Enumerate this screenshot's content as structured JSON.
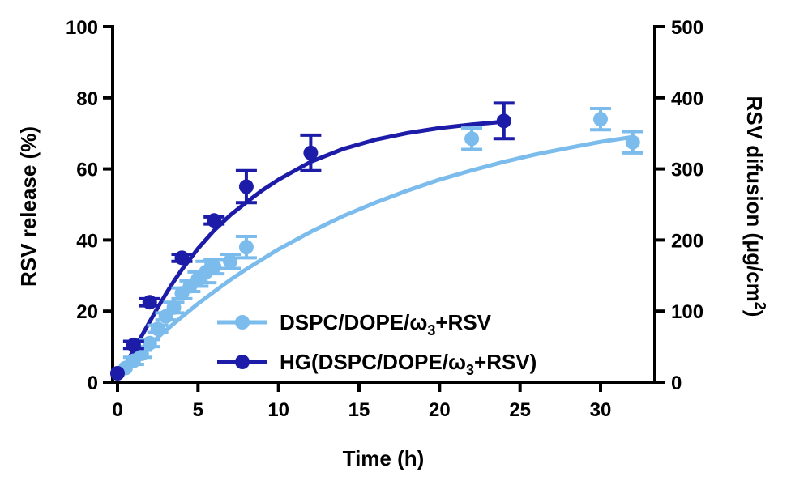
{
  "chart_data": {
    "type": "line",
    "title": "",
    "xlabel": "Time (h)",
    "ylabel": "RSV release (%)",
    "y2label_main": "RSV difusion (",
    "y2label_unit": "μg/cm",
    "y2label_sup": "2",
    "y2label_close": ")",
    "xlim": [
      0,
      33
    ],
    "ylim": [
      0,
      100
    ],
    "y2lim": [
      0,
      500
    ],
    "x_ticks": [
      0,
      5,
      10,
      15,
      20,
      25,
      30
    ],
    "x_tick_labels": [
      "0",
      "5",
      "10",
      "15",
      "20",
      "25",
      "30"
    ],
    "y_ticks": [
      0,
      20,
      40,
      60,
      80,
      100
    ],
    "y_tick_labels": [
      "0",
      "20",
      "40",
      "60",
      "80",
      "100"
    ],
    "y2_ticks": [
      0,
      100,
      200,
      300,
      400,
      500
    ],
    "y2_tick_labels": [
      "0",
      "100",
      "200",
      "300",
      "400",
      "500"
    ],
    "legend_position": "bottom-right",
    "series": [
      {
        "name": "DSPC/DOPE/ω3+RSV",
        "legend_main": "DSPC/DOPE/ω",
        "legend_sub": "3",
        "legend_tail": "+RSV",
        "color": "#7bbcec",
        "x": [
          0,
          0.5,
          1,
          1.5,
          2,
          2.5,
          3,
          3.5,
          4,
          4.5,
          5,
          5.5,
          6,
          7,
          8,
          22,
          30,
          32
        ],
        "y": [
          2.5,
          4,
          6,
          8,
          11,
          15,
          18.5,
          21,
          25,
          27,
          29,
          31,
          32.5,
          34,
          38,
          68.5,
          74,
          67.5
        ],
        "err": [
          0.5,
          0.5,
          1,
          1,
          1,
          1,
          1,
          1.5,
          1.5,
          1.5,
          2,
          3,
          2,
          2,
          3,
          3,
          3,
          3
        ],
        "fit": [
          [
            0,
            1.8
          ],
          [
            1,
            6.3
          ],
          [
            2,
            10.6
          ],
          [
            3,
            14.6
          ],
          [
            4,
            18.4
          ],
          [
            5,
            22.1
          ],
          [
            6,
            25.5
          ],
          [
            7,
            28.8
          ],
          [
            8,
            31.8
          ],
          [
            10,
            37.4
          ],
          [
            12,
            42.3
          ],
          [
            14,
            46.7
          ],
          [
            16,
            50.5
          ],
          [
            18,
            53.9
          ],
          [
            20,
            57
          ],
          [
            22,
            59.6
          ],
          [
            24,
            62
          ],
          [
            26,
            64.1
          ],
          [
            28,
            65.9
          ],
          [
            30,
            67.6
          ],
          [
            32,
            69
          ]
        ]
      },
      {
        "name": "HG(DSPC/DOPE/ω3+RSV)",
        "legend_main": "HG(DSPC/DOPE/ω",
        "legend_sub": "3",
        "legend_tail": "+RSV)",
        "color": "#1c1ca8",
        "x": [
          0,
          1,
          2,
          4,
          6,
          8,
          12,
          24
        ],
        "y": [
          2.5,
          10.5,
          22.5,
          35,
          45.5,
          55,
          64.5,
          73.5
        ],
        "err": [
          0.5,
          1,
          1,
          1,
          1,
          4.5,
          5,
          5
        ],
        "fit": [
          [
            0,
            2.5
          ],
          [
            0.5,
            5
          ],
          [
            1,
            9
          ],
          [
            1.5,
            13
          ],
          [
            2,
            17
          ],
          [
            2.5,
            21
          ],
          [
            3,
            24.8
          ],
          [
            3.5,
            28.4
          ],
          [
            4,
            31.7
          ],
          [
            5,
            37.6
          ],
          [
            6,
            42.7
          ],
          [
            7,
            47
          ],
          [
            8,
            50.6
          ],
          [
            9,
            54
          ],
          [
            10,
            57
          ],
          [
            12,
            62
          ],
          [
            14,
            65.6
          ],
          [
            16,
            68.2
          ],
          [
            18,
            70.1
          ],
          [
            20,
            71.5
          ],
          [
            22,
            72.5
          ],
          [
            24,
            73.3
          ]
        ]
      }
    ]
  }
}
